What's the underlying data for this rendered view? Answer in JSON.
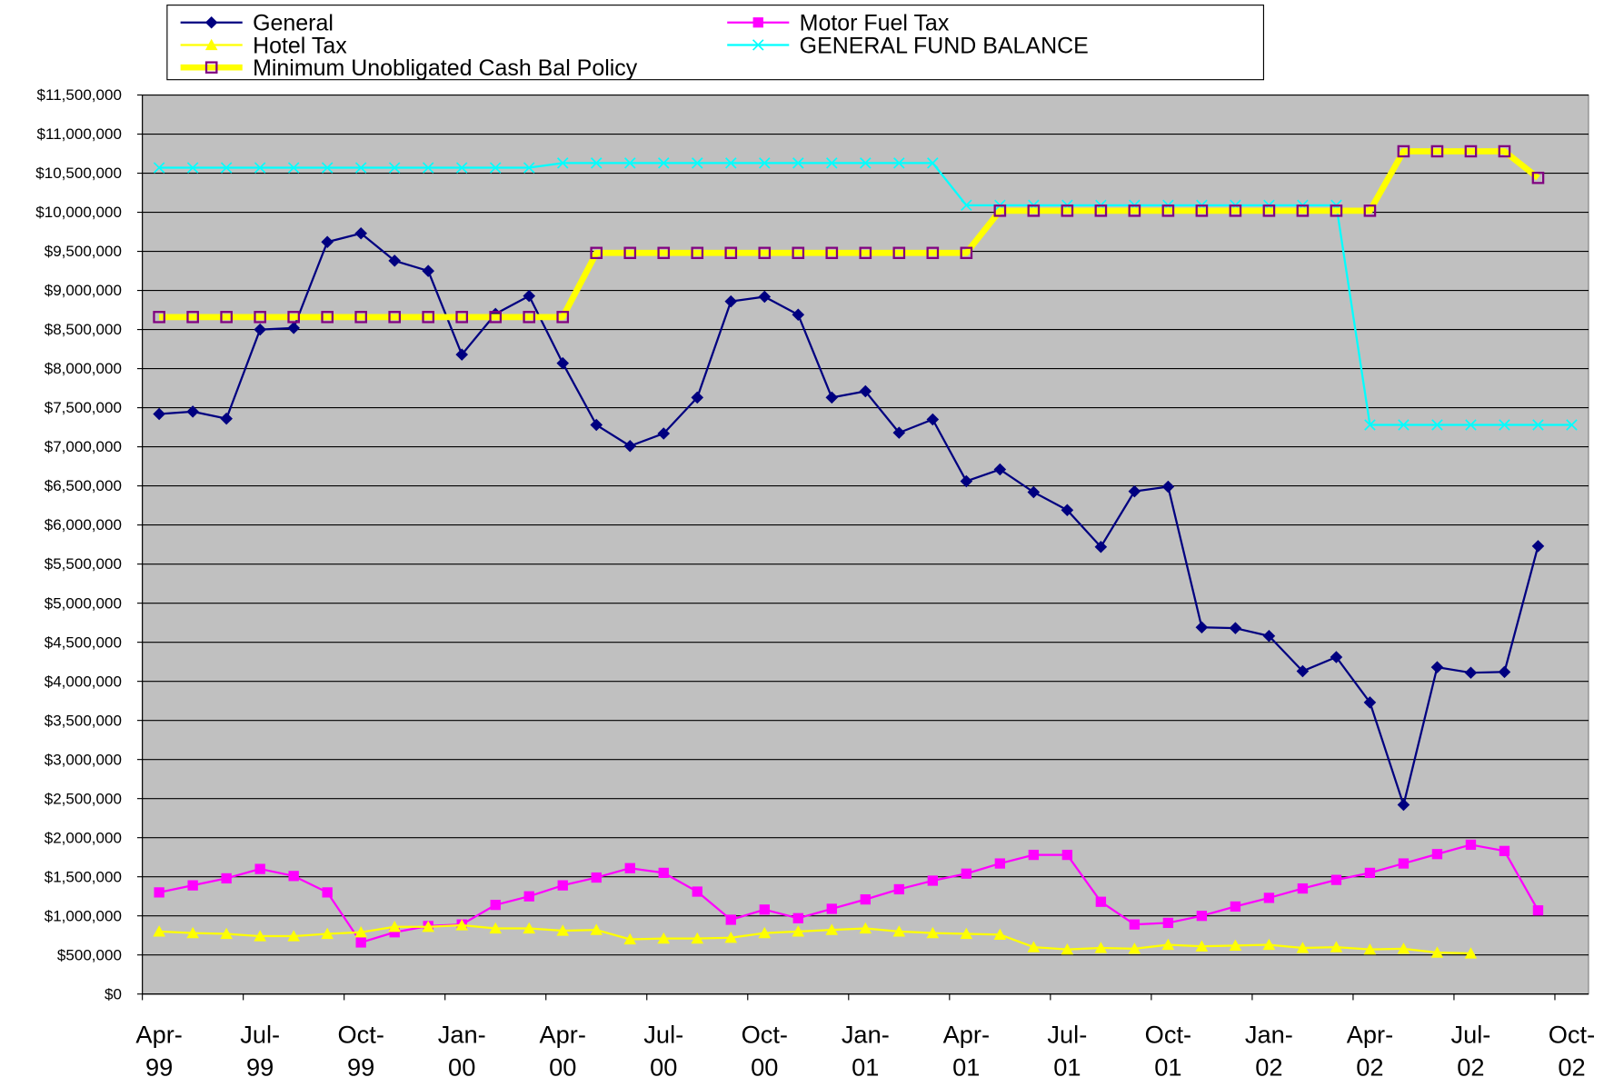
{
  "chart_data": {
    "type": "line",
    "categories": [
      "Apr-99",
      null,
      null,
      "Jul-99",
      null,
      null,
      "Oct-99",
      null,
      null,
      "Jan-00",
      null,
      null,
      "Apr-00",
      null,
      null,
      "Jul-00",
      null,
      null,
      "Oct-00",
      null,
      null,
      "Jan-01",
      null,
      null,
      "Apr-01",
      null,
      null,
      "Jul-01",
      null,
      null,
      "Oct-01",
      null,
      null,
      "Jan-02",
      null,
      null,
      "Apr-02",
      null,
      null,
      "Jul-02",
      null,
      null,
      "Oct-02"
    ],
    "series": [
      {
        "name": "General",
        "color": "#000080",
        "marker": "diamond",
        "values": [
          7420000,
          7450000,
          7360000,
          8500000,
          8520000,
          9620000,
          9730000,
          9380000,
          9250000,
          8180000,
          8700000,
          8930000,
          8070000,
          7280000,
          7010000,
          7170000,
          7630000,
          8860000,
          8920000,
          8690000,
          7630000,
          7710000,
          7180000,
          7350000,
          6560000,
          6710000,
          6420000,
          6190000,
          5720000,
          6430000,
          6490000,
          4690000,
          4680000,
          4580000,
          4130000,
          4310000,
          3730000,
          2420000,
          4180000,
          4110000,
          4120000,
          5730000,
          null
        ]
      },
      {
        "name": "Motor Fuel Tax",
        "color": "#ff00ff",
        "marker": "square",
        "values": [
          1300000,
          1390000,
          1480000,
          1600000,
          1510000,
          1300000,
          660000,
          790000,
          870000,
          890000,
          1140000,
          1250000,
          1390000,
          1490000,
          1610000,
          1550000,
          1310000,
          950000,
          1080000,
          970000,
          1090000,
          1210000,
          1340000,
          1450000,
          1540000,
          1670000,
          1780000,
          1780000,
          1180000,
          890000,
          910000,
          1000000,
          1120000,
          1230000,
          1350000,
          1460000,
          1550000,
          1670000,
          1790000,
          1910000,
          1830000,
          1070000,
          null
        ]
      },
      {
        "name": "Hotel Tax",
        "color": "#ffff00",
        "marker": "triangle",
        "values": [
          800000,
          780000,
          770000,
          740000,
          740000,
          770000,
          790000,
          860000,
          860000,
          880000,
          840000,
          840000,
          810000,
          820000,
          700000,
          710000,
          710000,
          720000,
          780000,
          800000,
          820000,
          840000,
          800000,
          780000,
          770000,
          760000,
          600000,
          570000,
          590000,
          580000,
          630000,
          610000,
          620000,
          630000,
          590000,
          600000,
          570000,
          580000,
          530000,
          520000,
          null,
          null,
          null
        ]
      },
      {
        "name": "GENERAL FUND BALANCE",
        "color": "#00ffff",
        "marker": "x",
        "values": [
          10570000,
          10570000,
          10570000,
          10570000,
          10570000,
          10570000,
          10570000,
          10570000,
          10570000,
          10570000,
          10570000,
          10570000,
          10630000,
          10630000,
          10630000,
          10630000,
          10630000,
          10630000,
          10630000,
          10630000,
          10630000,
          10630000,
          10630000,
          10630000,
          10090000,
          10090000,
          10090000,
          10090000,
          10090000,
          10090000,
          10090000,
          10090000,
          10090000,
          10090000,
          10090000,
          10090000,
          7280000,
          7280000,
          7280000,
          7280000,
          7280000,
          7280000,
          7280000
        ]
      },
      {
        "name": "Minimum Unobligated Cash Bal Policy",
        "color": "#ffff00",
        "marker": "hollow-square",
        "marker_color": "#800080",
        "line_width": 6,
        "values": [
          8660000,
          8660000,
          8660000,
          8660000,
          8660000,
          8660000,
          8660000,
          8660000,
          8660000,
          8660000,
          8660000,
          8660000,
          8660000,
          9480000,
          9480000,
          9480000,
          9480000,
          9480000,
          9480000,
          9480000,
          9480000,
          9480000,
          9480000,
          9480000,
          9480000,
          10020000,
          10020000,
          10020000,
          10020000,
          10020000,
          10020000,
          10020000,
          10020000,
          10020000,
          10020000,
          10020000,
          10020000,
          10780000,
          10780000,
          10780000,
          10780000,
          10440000,
          null
        ]
      }
    ],
    "ylim": [
      0,
      11500000
    ],
    "yticks": [
      {
        "value": 0,
        "label": "$0"
      },
      {
        "value": 500000,
        "label": "$500,000"
      },
      {
        "value": 1000000,
        "label": "$1,000,000"
      },
      {
        "value": 1500000,
        "label": "$1,500,000"
      },
      {
        "value": 2000000,
        "label": "$2,000,000"
      },
      {
        "value": 2500000,
        "label": "$2,500,000"
      },
      {
        "value": 3000000,
        "label": "$3,000,000"
      },
      {
        "value": 3500000,
        "label": "$3,500,000"
      },
      {
        "value": 4000000,
        "label": "$4,000,000"
      },
      {
        "value": 4500000,
        "label": "$4,500,000"
      },
      {
        "value": 5000000,
        "label": "$5,000,000"
      },
      {
        "value": 5500000,
        "label": "$5,500,000"
      },
      {
        "value": 6000000,
        "label": "$6,000,000"
      },
      {
        "value": 6500000,
        "label": "$6,500,000"
      },
      {
        "value": 7000000,
        "label": "$7,000,000"
      },
      {
        "value": 7500000,
        "label": "$7,500,000"
      },
      {
        "value": 8000000,
        "label": "$8,000,000"
      },
      {
        "value": 8500000,
        "label": "$8,500,000"
      },
      {
        "value": 9000000,
        "label": "$9,000,000"
      },
      {
        "value": 9500000,
        "label": "$9,500,000"
      },
      {
        "value": 10000000,
        "label": "$10,000,000"
      },
      {
        "value": 10500000,
        "label": "$10,500,000"
      },
      {
        "value": 11000000,
        "label": "$11,000,000"
      },
      {
        "value": 11500000,
        "label": "$11,500,000"
      }
    ],
    "grid": true,
    "legend": "top",
    "plot_background": "#c0c0c0"
  }
}
